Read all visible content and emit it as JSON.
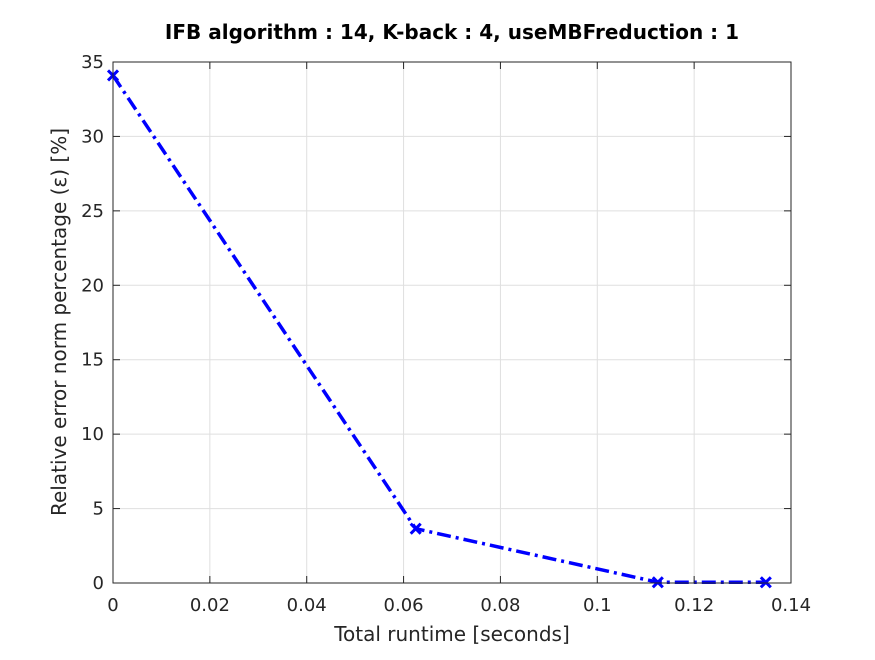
{
  "chart_data": {
    "type": "line",
    "title": "IFB algorithm : 14, K-back : 4, useMBFreduction : 1",
    "xlabel": "Total runtime [seconds]",
    "ylabel": "Relative error norm percentage (ε) [%]",
    "xlim": [
      0,
      0.14
    ],
    "ylim": [
      0,
      35
    ],
    "xticks": [
      0,
      0.02,
      0.04,
      0.06,
      0.08,
      0.1,
      0.12,
      0.14
    ],
    "xtick_labels": [
      "0",
      "0.02",
      "0.04",
      "0.06",
      "0.08",
      "0.1",
      "0.12",
      "0.14"
    ],
    "yticks": [
      0,
      5,
      10,
      15,
      20,
      25,
      30,
      35
    ],
    "ytick_labels": [
      "0",
      "5",
      "10",
      "15",
      "20",
      "25",
      "30",
      "35"
    ],
    "grid": true,
    "series": [
      {
        "x": [
          0,
          0.0625,
          0.1125,
          0.1348
        ],
        "y": [
          34.1,
          3.65,
          0.05,
          0.05
        ],
        "color": "#0000ff",
        "line_style": "dash-dot",
        "marker": "x"
      }
    ]
  }
}
